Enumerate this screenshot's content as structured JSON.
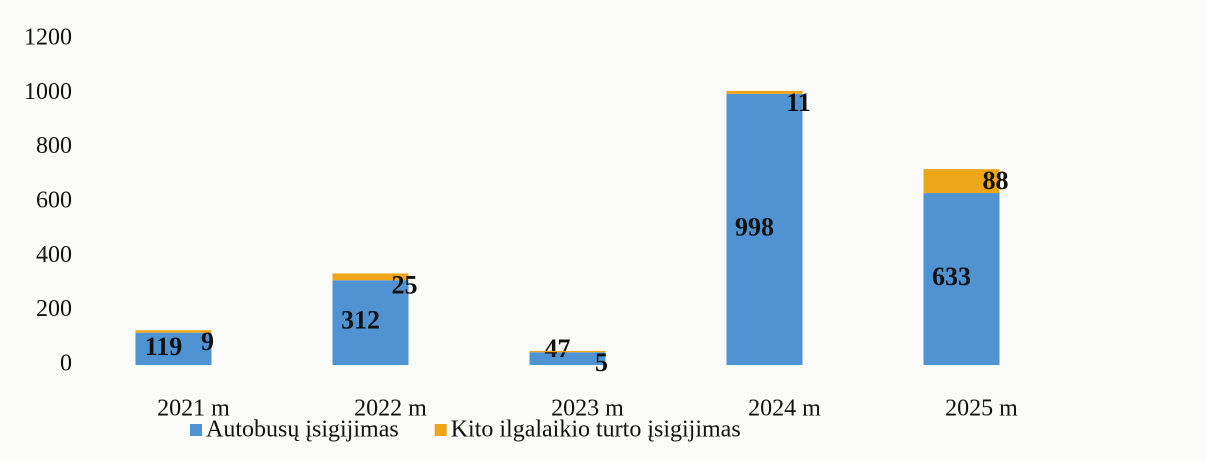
{
  "chart_data": {
    "type": "stacked_bar",
    "categories": [
      "2021 m",
      "2022 m",
      "2023 m",
      "2024 m",
      "2025 m"
    ],
    "series": [
      {
        "name": "Autobusų įsigijimas",
        "color": "#4f93d2",
        "values": [
          119,
          312,
          47,
          998,
          633
        ]
      },
      {
        "name": "Kito ilgalaikio turto įsigijimas",
        "color": "#eea619",
        "values": [
          9,
          25,
          5,
          11,
          88
        ]
      }
    ],
    "ylim": [
      0,
      1200
    ],
    "yticks": [
      0,
      200,
      400,
      600,
      800,
      1000,
      1200
    ],
    "grid": false,
    "legend": "bottom"
  }
}
